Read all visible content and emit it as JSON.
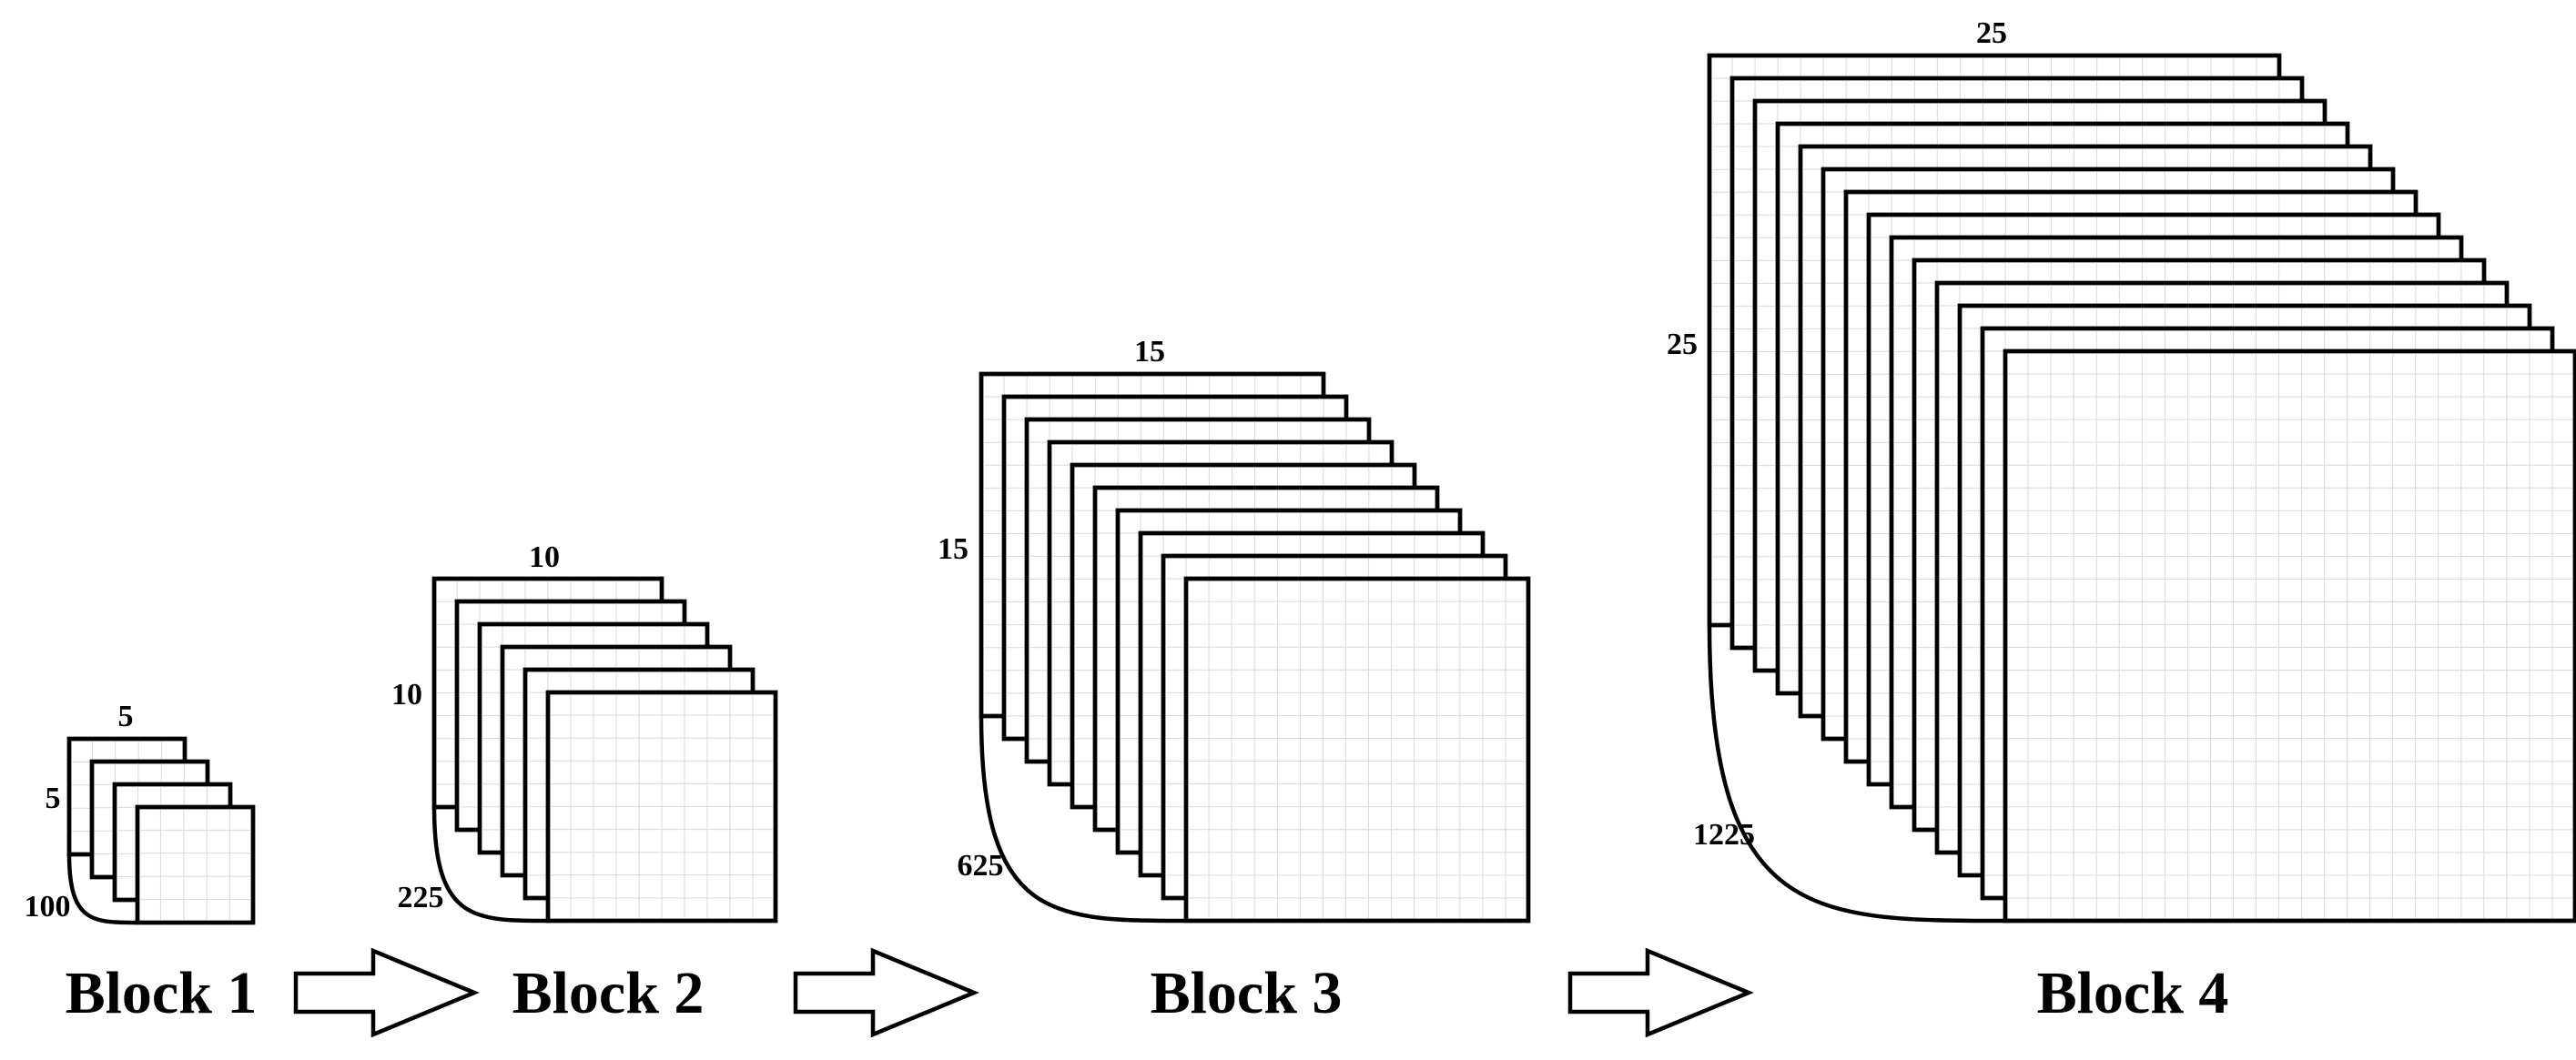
{
  "blocks": [
    {
      "title": "Block 1",
      "width_label": "5",
      "height_label": "5",
      "count_label": "100",
      "grid_size": 5,
      "sheets": 4
    },
    {
      "title": "Block 2",
      "width_label": "10",
      "height_label": "10",
      "count_label": "225",
      "grid_size": 10,
      "sheets": 6
    },
    {
      "title": "Block 3",
      "width_label": "15",
      "height_label": "15",
      "count_label": "625",
      "grid_size": 15,
      "sheets": 10
    },
    {
      "title": "Block 4",
      "width_label": "25",
      "height_label": "25",
      "count_label": "1225",
      "grid_size": 25,
      "sheets": 14
    }
  ],
  "arrows": 3,
  "colors": {
    "stroke": "#000000",
    "fill": "#ffffff",
    "grid": "#d9d9d9"
  }
}
